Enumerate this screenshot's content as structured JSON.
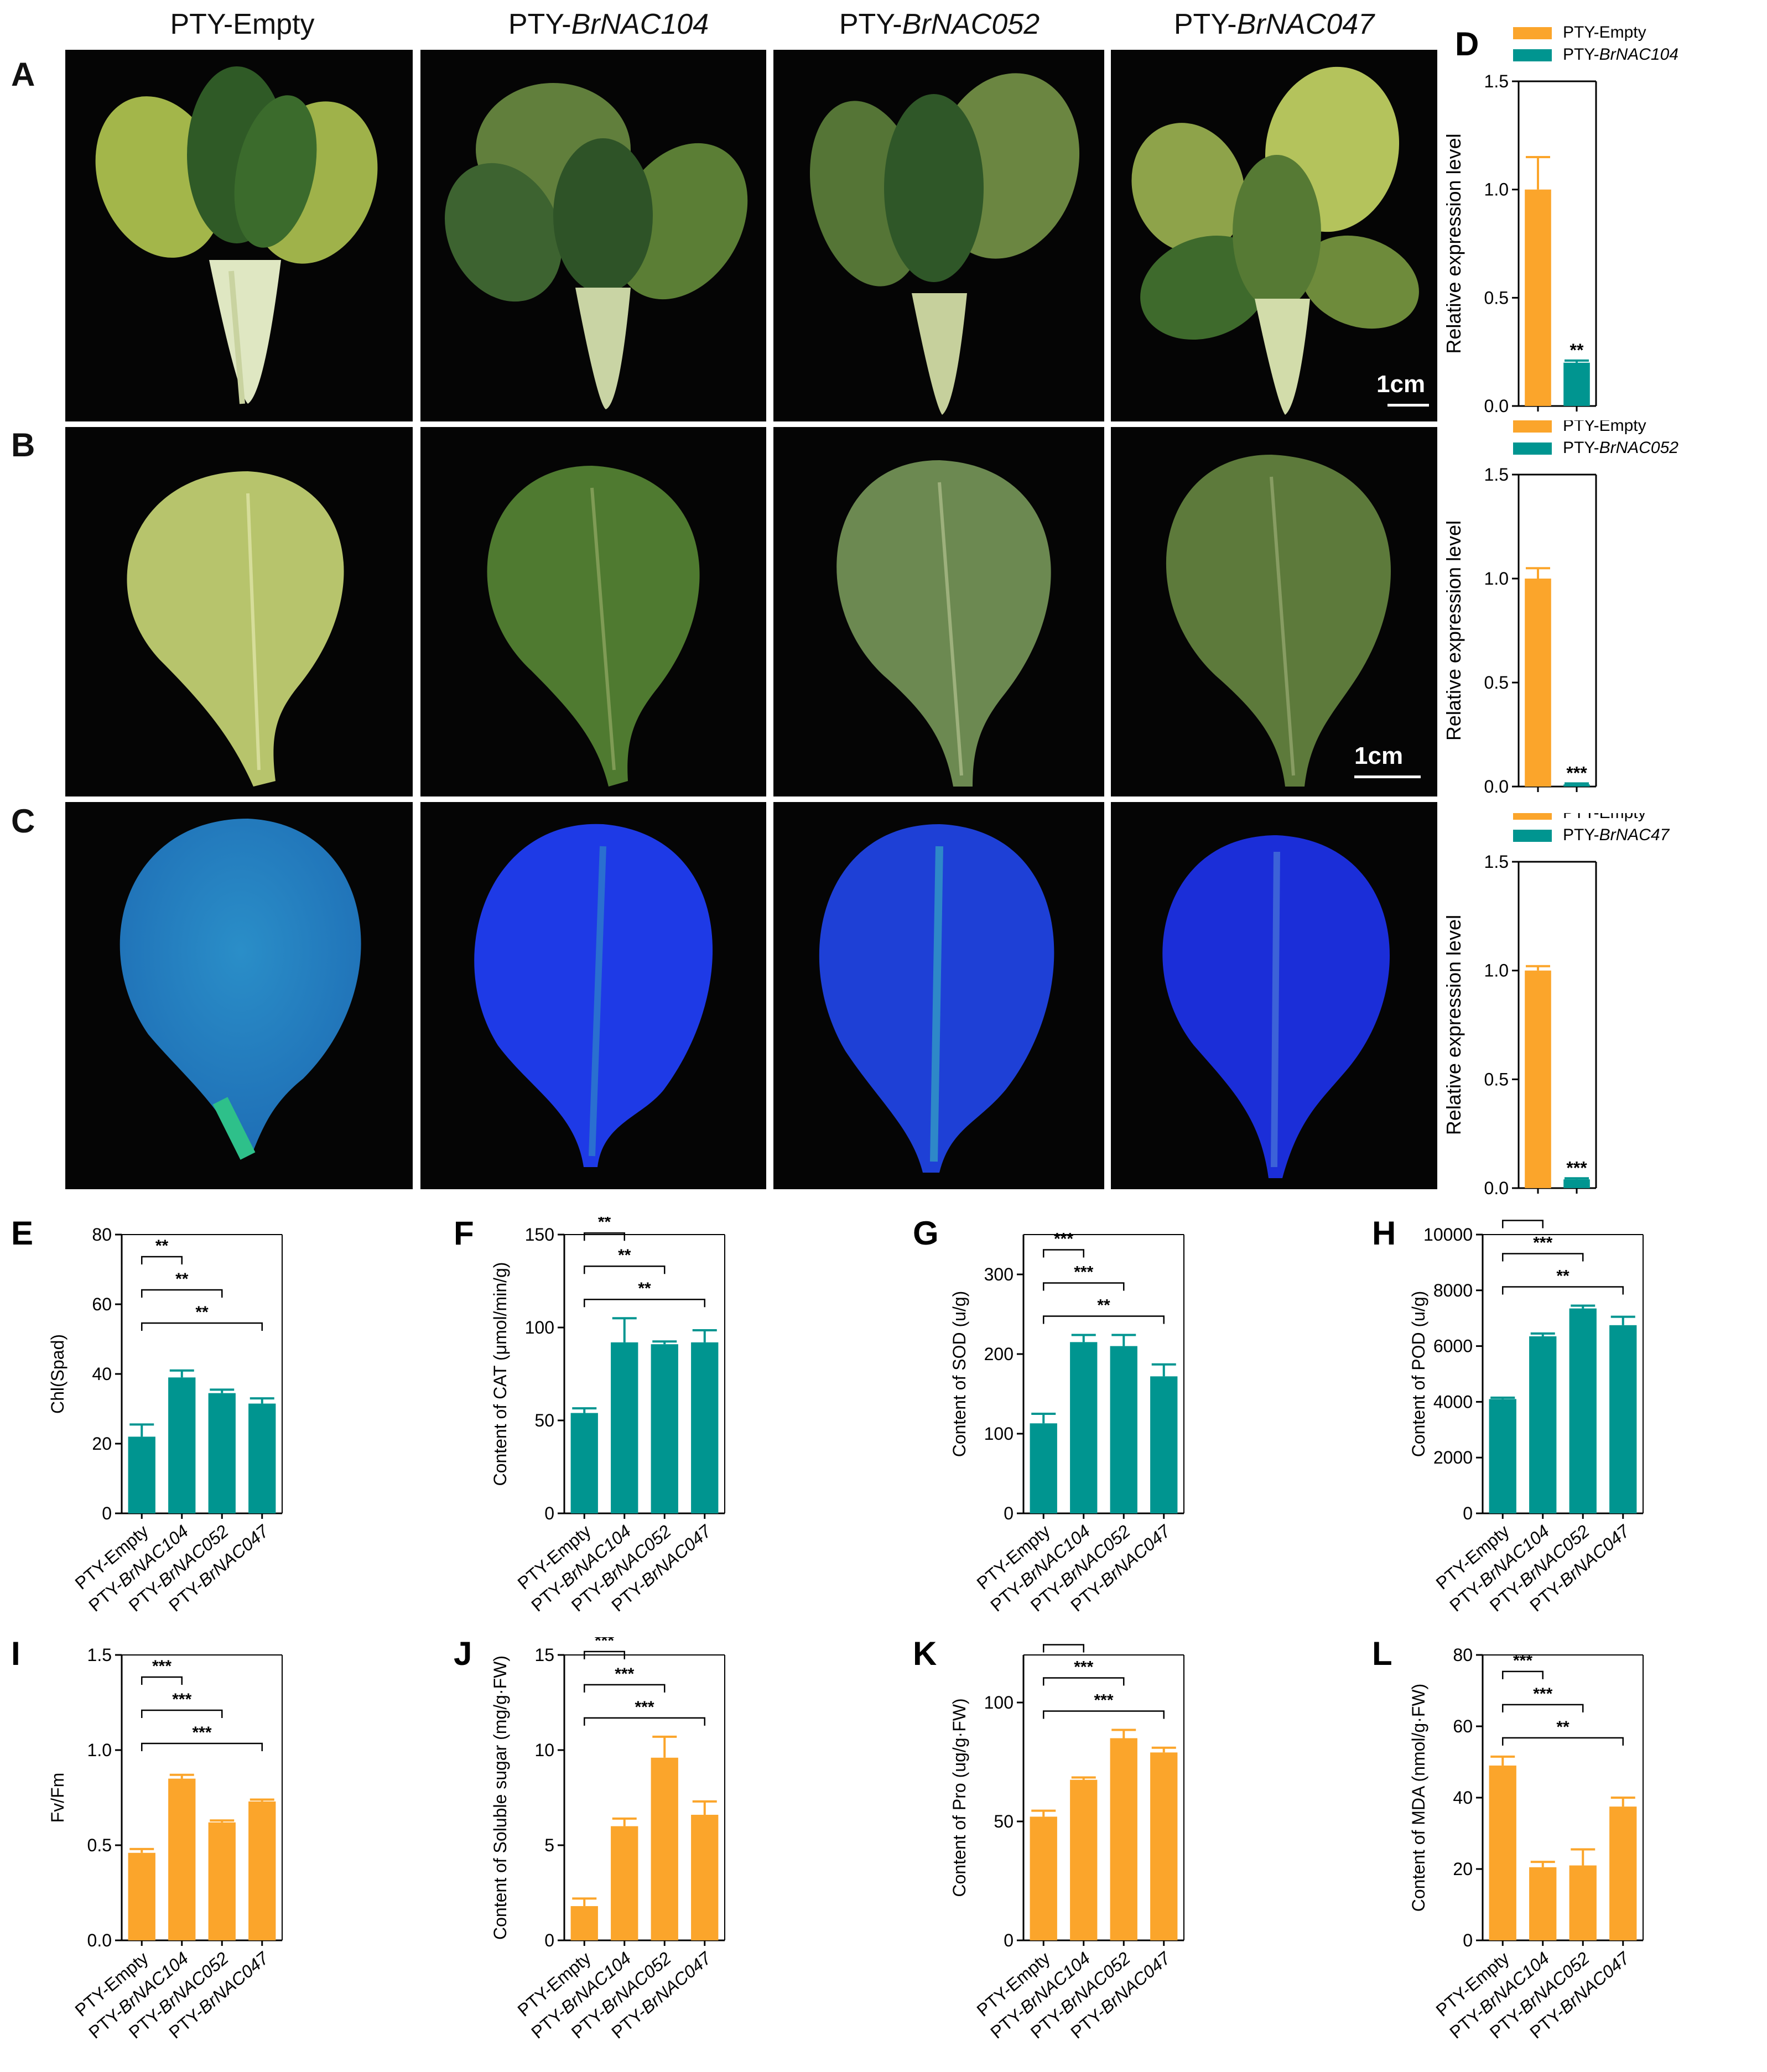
{
  "column_titles": [
    {
      "prefix": "PTY-",
      "gene": "Empty",
      "italic": false
    },
    {
      "prefix": "PTY-",
      "gene": "BrNAC104",
      "italic": true
    },
    {
      "prefix": "PTY-",
      "gene": "BrNAC052",
      "italic": true
    },
    {
      "prefix": "PTY-",
      "gene": "BrNAC047",
      "italic": true
    }
  ],
  "panel_letters": {
    "A": "A",
    "B": "B",
    "C": "C"
  },
  "scale_bar_label": "1cm",
  "colors": {
    "orange": "#FBA52B",
    "teal": "#009590",
    "leaf_yellow": "#b9c56a",
    "leaf_dark": "#4f7a35",
    "fluor_blue": "#1b2fd8",
    "fluor_cyan": "#2aa0c8"
  },
  "chart_data": [
    {
      "id": "D",
      "letter": "D",
      "type": "bar",
      "categories": [
        "PTY-Empty",
        "PTY-BrNAC104"
      ],
      "legend": [
        {
          "prefix": "PTY-",
          "gene": "Empty",
          "italic": false
        },
        {
          "prefix": "PTY-",
          "gene": "BrNAC104",
          "italic": true
        }
      ],
      "values": [
        1.0,
        0.2
      ],
      "errors": [
        0.15,
        0.01
      ],
      "bar_colors": [
        "orange",
        "teal"
      ],
      "sig": [
        "",
        "**"
      ],
      "ylabel": "Relative expression level",
      "ylim": [
        0,
        1.5
      ],
      "yticks": [
        0,
        0.5,
        1.0,
        1.5
      ],
      "ytick_labels": [
        "0.0",
        "0.5",
        "1.0",
        "1.5"
      ],
      "show_xlabels": false,
      "brackets": []
    },
    {
      "id": "D2",
      "letter": "",
      "type": "bar",
      "categories": [
        "PTY-Empty",
        "PTY-BrNAC052"
      ],
      "legend": [
        {
          "prefix": "PTY-",
          "gene": "Empty",
          "italic": false
        },
        {
          "prefix": "PTY-",
          "gene": "BrNAC052",
          "italic": true
        }
      ],
      "values": [
        1.0,
        0.01
      ],
      "errors": [
        0.05,
        0.005
      ],
      "bar_colors": [
        "orange",
        "teal"
      ],
      "sig": [
        "",
        "***"
      ],
      "ylabel": "Relative expression level",
      "ylim": [
        0,
        1.5
      ],
      "yticks": [
        0,
        0.5,
        1.0,
        1.5
      ],
      "ytick_labels": [
        "0.0",
        "0.5",
        "1.0",
        "1.5"
      ],
      "show_xlabels": false,
      "brackets": []
    },
    {
      "id": "D3",
      "letter": "",
      "type": "bar",
      "categories": [
        "PTY-Empty",
        "PTY-BrNAC47"
      ],
      "legend": [
        {
          "prefix": "PTY-",
          "gene": "Empty",
          "italic": false
        },
        {
          "prefix": "PTY-",
          "gene": "BrNAC47",
          "italic": true
        }
      ],
      "values": [
        1.0,
        0.04
      ],
      "errors": [
        0.02,
        0.005
      ],
      "bar_colors": [
        "orange",
        "teal"
      ],
      "sig": [
        "",
        "***"
      ],
      "ylabel": "Relative expression level",
      "ylim": [
        0,
        1.5
      ],
      "yticks": [
        0,
        0.5,
        1.0,
        1.5
      ],
      "ytick_labels": [
        "0.0",
        "0.5",
        "1.0",
        "1.5"
      ],
      "show_xlabels": false,
      "brackets": []
    },
    {
      "id": "E",
      "letter": "E",
      "type": "bar",
      "categories": [
        "PTY-Empty",
        "PTY-BrNAC104",
        "PTY-BrNAC052",
        "PTY-BrNAC047"
      ],
      "values": [
        22,
        39,
        34.5,
        31.5
      ],
      "errors": [
        3.5,
        2.0,
        1.0,
        1.5
      ],
      "bar_colors": [
        "teal",
        "teal",
        "teal",
        "teal"
      ],
      "ylabel": "Chl(Spad)",
      "ylim": [
        0,
        80
      ],
      "yticks": [
        0,
        20,
        40,
        60,
        80
      ],
      "ytick_labels": [
        "0",
        "20",
        "40",
        "60",
        "80"
      ],
      "show_xlabels": true,
      "brackets": [
        {
          "to": 1,
          "label": "**"
        },
        {
          "to": 2,
          "label": "**"
        },
        {
          "to": 3,
          "label": "**"
        }
      ]
    },
    {
      "id": "F",
      "letter": "F",
      "type": "bar",
      "categories": [
        "PTY-Empty",
        "PTY-BrNAC104",
        "PTY-BrNAC052",
        "PTY-BrNAC047"
      ],
      "values": [
        54,
        92,
        91,
        92
      ],
      "errors": [
        2.5,
        13,
        1.5,
        6.5
      ],
      "bar_colors": [
        "teal",
        "teal",
        "teal",
        "teal"
      ],
      "ylabel": "Content of CAT (μmol/min/g)",
      "ylim": [
        0,
        150
      ],
      "yticks": [
        0,
        50,
        100,
        150
      ],
      "ytick_labels": [
        "0",
        "50",
        "100",
        "150"
      ],
      "show_xlabels": true,
      "brackets": [
        {
          "to": 1,
          "label": "**"
        },
        {
          "to": 2,
          "label": "**"
        },
        {
          "to": 3,
          "label": "**"
        }
      ]
    },
    {
      "id": "G",
      "letter": "G",
      "type": "bar",
      "categories": [
        "PTY-Empty",
        "PTY-BrNAC104",
        "PTY-BrNAC052",
        "PTY-BrNAC047"
      ],
      "values": [
        113,
        215,
        210,
        172
      ],
      "errors": [
        12,
        9,
        14,
        15
      ],
      "bar_colors": [
        "teal",
        "teal",
        "teal",
        "teal"
      ],
      "ylabel": "Content of SOD (u/g)",
      "ylim": [
        0,
        350
      ],
      "yticks": [
        0,
        100,
        200,
        300
      ],
      "ytick_labels": [
        "0",
        "100",
        "200",
        "300"
      ],
      "show_xlabels": true,
      "brackets": [
        {
          "to": 1,
          "label": "***"
        },
        {
          "to": 2,
          "label": "***"
        },
        {
          "to": 3,
          "label": "**"
        }
      ]
    },
    {
      "id": "H",
      "letter": "H",
      "type": "bar",
      "categories": [
        "PTY-Empty",
        "PTY-BrNAC104",
        "PTY-BrNAC052",
        "PTY-BrNAC047"
      ],
      "values": [
        4100,
        6350,
        7350,
        6750
      ],
      "errors": [
        50,
        100,
        100,
        300
      ],
      "bar_colors": [
        "teal",
        "teal",
        "teal",
        "teal"
      ],
      "ylabel": "Content of POD (u/g)",
      "ylim": [
        0,
        10000
      ],
      "yticks": [
        0,
        2000,
        4000,
        6000,
        8000,
        10000
      ],
      "ytick_labels": [
        "0",
        "2000",
        "4000",
        "6000",
        "8000",
        "10000"
      ],
      "show_xlabels": true,
      "brackets": [
        {
          "to": 1,
          "label": "**"
        },
        {
          "to": 2,
          "label": "***"
        },
        {
          "to": 3,
          "label": "**"
        }
      ]
    },
    {
      "id": "I",
      "letter": "I",
      "type": "bar",
      "categories": [
        "PTY-Empty",
        "PTY-BrNAC104",
        "PTY-BrNAC052",
        "PTY-BrNAC047"
      ],
      "values": [
        0.46,
        0.85,
        0.62,
        0.73
      ],
      "errors": [
        0.02,
        0.02,
        0.01,
        0.01
      ],
      "bar_colors": [
        "orange",
        "orange",
        "orange",
        "orange"
      ],
      "ylabel": "Fv/Fm",
      "ylim": [
        0,
        1.5
      ],
      "yticks": [
        0,
        0.5,
        1.0,
        1.5
      ],
      "ytick_labels": [
        "0.0",
        "0.5",
        "1.0",
        "1.5"
      ],
      "show_xlabels": true,
      "brackets": [
        {
          "to": 1,
          "label": "***"
        },
        {
          "to": 2,
          "label": "***"
        },
        {
          "to": 3,
          "label": "***"
        }
      ]
    },
    {
      "id": "J",
      "letter": "J",
      "type": "bar",
      "categories": [
        "PTY-Empty",
        "PTY-BrNAC104",
        "PTY-BrNAC052",
        "PTY-BrNAC047"
      ],
      "values": [
        1.8,
        6.0,
        9.6,
        6.6
      ],
      "errors": [
        0.4,
        0.4,
        1.1,
        0.7
      ],
      "bar_colors": [
        "orange",
        "orange",
        "orange",
        "orange"
      ],
      "ylabel": "Content of Soluble sugar (mg/g·FW)",
      "ylim": [
        0,
        15
      ],
      "yticks": [
        0,
        5,
        10,
        15
      ],
      "ytick_labels": [
        "0",
        "5",
        "10",
        "15"
      ],
      "show_xlabels": true,
      "brackets": [
        {
          "to": 1,
          "label": "***"
        },
        {
          "to": 2,
          "label": "***"
        },
        {
          "to": 3,
          "label": "***"
        }
      ]
    },
    {
      "id": "K",
      "letter": "K",
      "type": "bar",
      "categories": [
        "PTY-Empty",
        "PTY-BrNAC104",
        "PTY-BrNAC052",
        "PTY-BrNAC047"
      ],
      "values": [
        52,
        67.5,
        85,
        79
      ],
      "errors": [
        2.5,
        1,
        3.5,
        2
      ],
      "bar_colors": [
        "orange",
        "orange",
        "orange",
        "orange"
      ],
      "ylabel": "Content of Pro (ug/g·FW)",
      "ylim": [
        0,
        120
      ],
      "yticks": [
        0,
        50,
        100
      ],
      "ytick_labels": [
        "0",
        "50",
        "100"
      ],
      "show_xlabels": true,
      "brackets": [
        {
          "to": 1,
          "label": "**"
        },
        {
          "to": 2,
          "label": "***"
        },
        {
          "to": 3,
          "label": "***"
        }
      ]
    },
    {
      "id": "L",
      "letter": "L",
      "type": "bar",
      "categories": [
        "PTY-Empty",
        "PTY-BrNAC104",
        "PTY-BrNAC052",
        "PTY-BrNAC047"
      ],
      "values": [
        49,
        20.5,
        21,
        37.5
      ],
      "errors": [
        2.5,
        1.5,
        4.5,
        2.5
      ],
      "bar_colors": [
        "orange",
        "orange",
        "orange",
        "orange"
      ],
      "ylabel": "Content of MDA (nmol/g·FW)",
      "ylim": [
        0,
        80
      ],
      "yticks": [
        0,
        20,
        40,
        60,
        80
      ],
      "ytick_labels": [
        "0",
        "20",
        "40",
        "60",
        "80"
      ],
      "show_xlabels": true,
      "brackets": [
        {
          "to": 1,
          "label": "***"
        },
        {
          "to": 2,
          "label": "***"
        },
        {
          "to": 3,
          "label": "**"
        }
      ]
    }
  ]
}
